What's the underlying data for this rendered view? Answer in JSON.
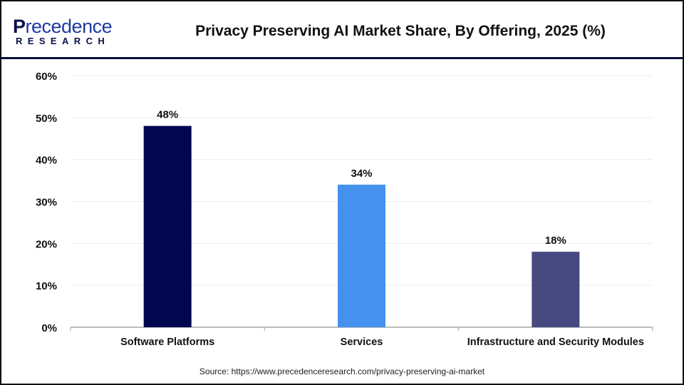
{
  "logo": {
    "text_line1": "Precedence",
    "text_line2": "RESEARCH"
  },
  "chart_data": {
    "type": "bar",
    "title": "Privacy Preserving AI Market Share, By Offering, 2025 (%)",
    "categories": [
      "Software Platforms",
      "Services",
      "Infrastructure and Security Modules"
    ],
    "values": [
      48,
      34,
      18
    ],
    "data_labels": [
      "48%",
      "34%",
      "18%"
    ],
    "colors": [
      "#020650",
      "#4592ee",
      "#474a80"
    ],
    "ylim": [
      0,
      60
    ],
    "yticks": [
      "0%",
      "10%",
      "20%",
      "30%",
      "40%",
      "50%",
      "60%"
    ],
    "grid": true,
    "xlabel": "",
    "ylabel": ""
  },
  "source": "Source: https://www.precedenceresearch.com/privacy-preserving-ai-market"
}
